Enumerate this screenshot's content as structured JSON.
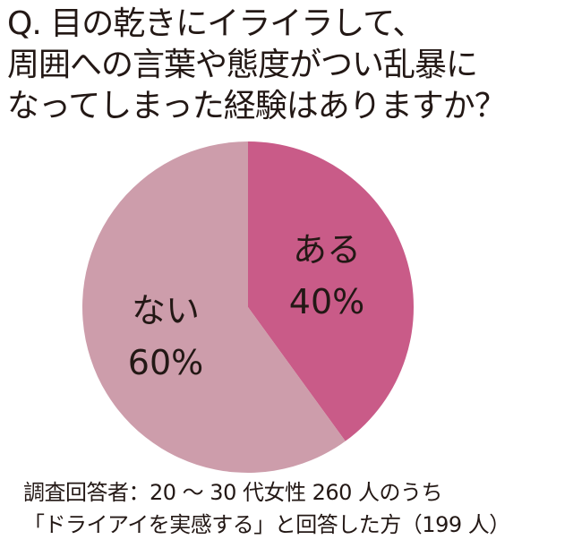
{
  "title": {
    "lines": [
      "Q. 目の乾きにイライラして、",
      "周囲への言葉や態度がつい乱暴に",
      "なってしまった経験はありますか？"
    ]
  },
  "chart_data": {
    "type": "pie",
    "title": "Q. 目の乾きにイライラして、周囲への言葉や態度がつい乱暴になってしまった経験はありますか？",
    "categories": [
      "ある",
      "ない"
    ],
    "values": [
      40,
      60
    ],
    "labels": [
      "40%",
      "60%"
    ],
    "colors": [
      "#c95b88",
      "#cd9dab"
    ],
    "start_angle_deg": 0,
    "direction": "clockwise"
  },
  "slices": [
    {
      "name": "ある",
      "percent": "40%",
      "color": "#c95b88"
    },
    {
      "name": "ない",
      "percent": "60%",
      "color": "#cd9dab"
    }
  ],
  "footer": {
    "lines": [
      "調査回答者：20 ～ 30 代女性 260 人のうち",
      "「ドライアイを実感する」と回答した方（199 人）"
    ]
  }
}
